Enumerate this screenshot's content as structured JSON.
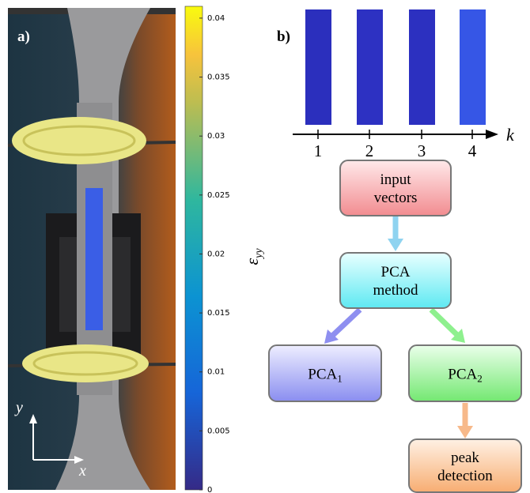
{
  "panel_a": {
    "label": "a)",
    "axis_y": "y",
    "axis_x": "x"
  },
  "colorbar": {
    "symbol": "ε",
    "subscript": "yy",
    "lim": [
      0,
      0.041
    ],
    "ticks": [
      0,
      0.005,
      0.01,
      0.015,
      0.02,
      0.025,
      0.03,
      0.035,
      0.04
    ]
  },
  "panel_b": {
    "label": "b)",
    "axis_label": "k",
    "ticks": [
      "1",
      "2",
      "3",
      "4"
    ],
    "strip_colors": [
      "#2b2fbd",
      "#2d31c2",
      "#2c30c0",
      "#3656e6"
    ]
  },
  "nodes": [
    {
      "label": "input vectors"
    },
    {
      "label": "PCA method"
    },
    {
      "label": "PCA",
      "subscript": "1"
    },
    {
      "label": "PCA",
      "subscript": "2"
    },
    {
      "label": "peak detection"
    }
  ]
}
